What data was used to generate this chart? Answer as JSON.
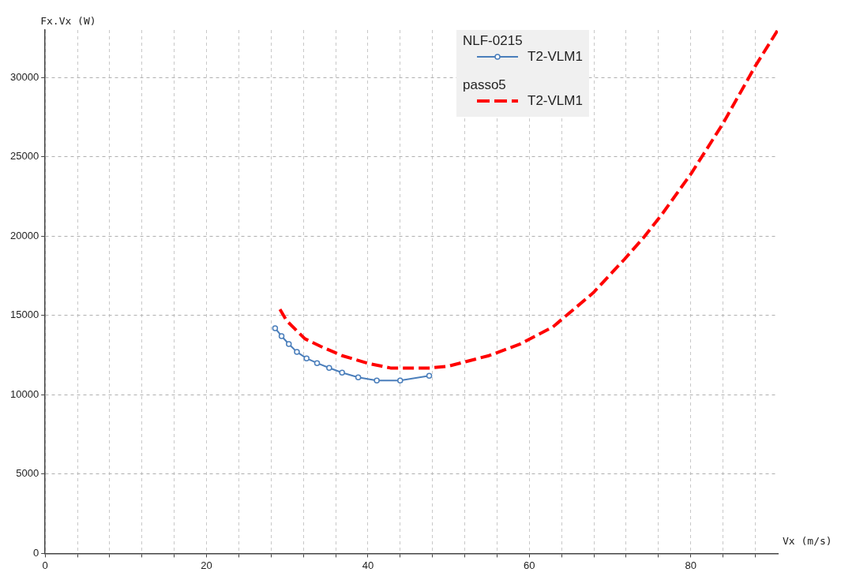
{
  "chart_data": {
    "type": "line",
    "xlabel": "Vx (m/s)",
    "ylabel": "Fx.Vx (W)",
    "annotations": [
      "NLF-0215",
      "passo5"
    ],
    "xlim": [
      0,
      90.8
    ],
    "ylim": [
      0,
      33000
    ],
    "xticks": [
      0,
      {
        "value": 4,
        "label": null
      },
      {
        "value": 8,
        "label": null
      },
      {
        "value": 12,
        "label": null
      },
      {
        "value": 16,
        "label": null
      },
      20,
      {
        "value": 24,
        "label": null
      },
      {
        "value": 28,
        "label": null
      },
      {
        "value": 32,
        "label": null
      },
      {
        "value": 36,
        "label": null
      },
      40,
      {
        "value": 44,
        "label": null
      },
      {
        "value": 48,
        "label": null
      },
      {
        "value": 52,
        "label": null
      },
      {
        "value": 56,
        "label": null
      },
      60,
      {
        "value": 64,
        "label": null
      },
      {
        "value": 68,
        "label": null
      },
      {
        "value": 72,
        "label": null
      },
      {
        "value": 76,
        "label": null
      },
      80,
      {
        "value": 84,
        "label": null
      },
      {
        "value": 88,
        "label": null
      }
    ],
    "yticks": [
      0,
      5000,
      10000,
      15000,
      20000,
      25000,
      30000
    ],
    "grid": true,
    "legend": "top",
    "series": [
      {
        "name": "T2-VLM1",
        "color": "#4a7ebb",
        "marker": "circle",
        "line_style": "solid",
        "x": [
          28.5,
          29.3,
          30.2,
          31.2,
          32.4,
          33.7,
          35.2,
          36.8,
          38.8,
          41.1,
          44.0,
          47.6
        ],
        "values": [
          14200,
          13700,
          13200,
          12700,
          12300,
          12000,
          11700,
          11400,
          11100,
          10900,
          10900,
          11200
        ]
      },
      {
        "name": "T2-VLM1",
        "color": "#ff0000",
        "marker": "none",
        "line_style": "dashed",
        "x": [
          29.1,
          29.9,
          32.2,
          34.2,
          36.8,
          40.1,
          42.8,
          47.7,
          50.0,
          55.0,
          58.9,
          62.9,
          67.9,
          71.8,
          74.1,
          76.4,
          80.1,
          84.0,
          88.0,
          90.8
        ],
        "values": [
          15390,
          14690,
          13530,
          13040,
          12470,
          11970,
          11690,
          11690,
          11810,
          12470,
          13210,
          14270,
          16420,
          18550,
          19870,
          21350,
          23980,
          27100,
          30720,
          33000
        ]
      }
    ]
  }
}
